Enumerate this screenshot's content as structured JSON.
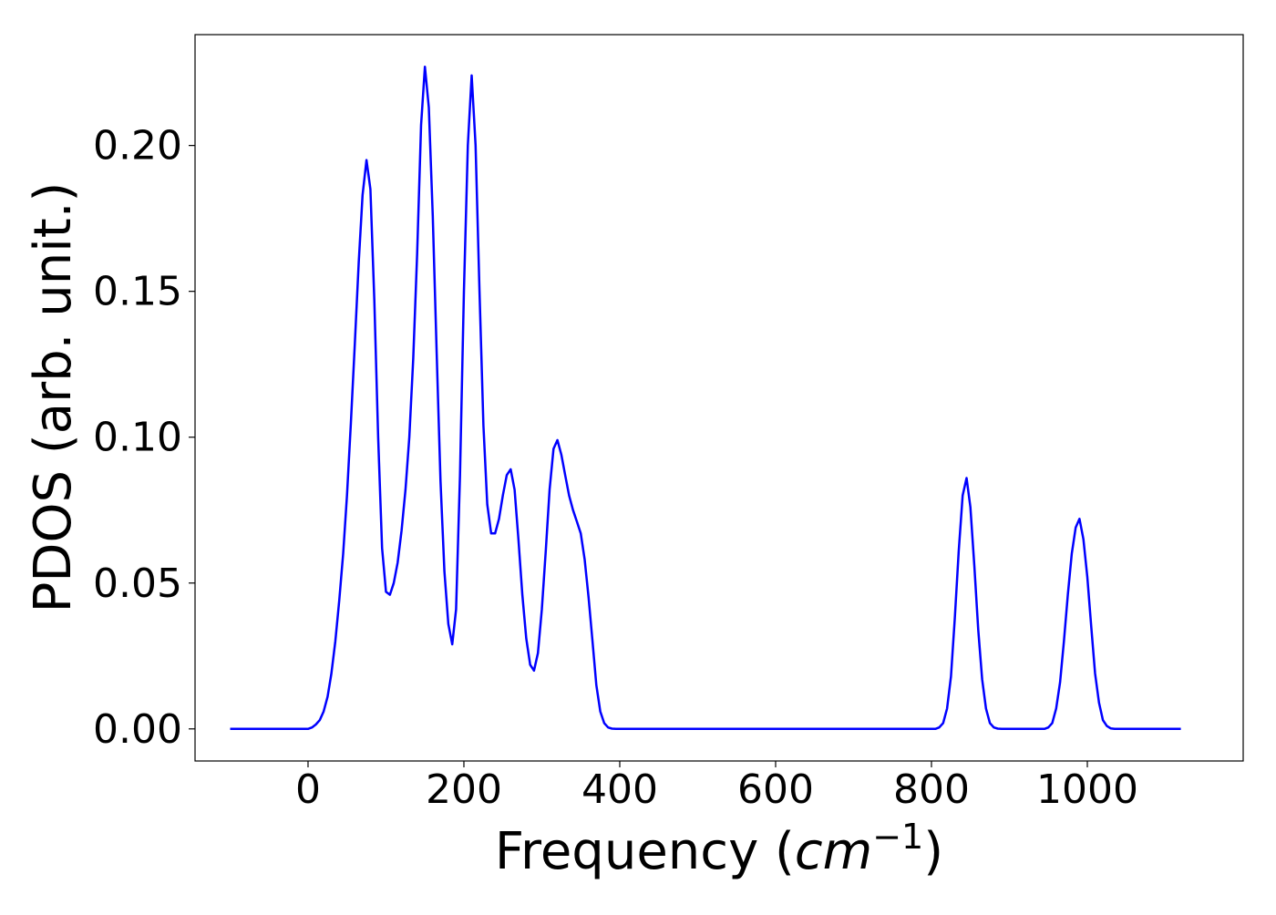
{
  "chart_data": {
    "type": "line",
    "title": "",
    "xlabel": "Frequency",
    "xlabel_unit_base": "cm",
    "xlabel_unit_exponent": "−1",
    "ylabel": "PDOS (arb. unit.)",
    "xlim": [
      -145,
      1200
    ],
    "ylim": [
      -0.011,
      0.238
    ],
    "x_ticks": [
      0,
      200,
      400,
      600,
      800,
      1000
    ],
    "x_tick_labels": [
      "0",
      "200",
      "400",
      "600",
      "800",
      "1000"
    ],
    "y_ticks": [
      0.0,
      0.05,
      0.1,
      0.15,
      0.2
    ],
    "y_tick_labels": [
      "0.00",
      "0.05",
      "0.10",
      "0.15",
      "0.20"
    ],
    "grid": false,
    "legend": "none",
    "series": [
      {
        "color": "#0000ff",
        "x": [
          -100,
          0,
          5,
          10,
          15,
          20,
          25,
          30,
          35,
          40,
          45,
          50,
          55,
          60,
          65,
          70,
          75,
          80,
          85,
          90,
          95,
          100,
          105,
          110,
          115,
          120,
          125,
          130,
          135,
          140,
          145,
          150,
          155,
          160,
          165,
          170,
          175,
          180,
          185,
          190,
          195,
          200,
          205,
          210,
          215,
          220,
          225,
          230,
          235,
          240,
          245,
          250,
          255,
          260,
          265,
          270,
          275,
          280,
          285,
          290,
          295,
          300,
          305,
          310,
          315,
          320,
          325,
          330,
          335,
          340,
          345,
          350,
          355,
          360,
          365,
          370,
          375,
          380,
          385,
          390,
          395,
          400,
          405,
          410,
          415,
          420,
          425,
          430,
          435,
          440,
          445,
          450,
          455,
          460,
          465,
          800,
          805,
          810,
          815,
          820,
          825,
          830,
          835,
          840,
          845,
          850,
          855,
          860,
          865,
          870,
          875,
          880,
          885,
          890,
          895,
          900,
          905,
          910,
          915,
          920,
          925,
          930,
          935,
          940,
          945,
          950,
          955,
          960,
          965,
          970,
          975,
          980,
          985,
          990,
          995,
          1000,
          1005,
          1010,
          1015,
          1020,
          1025,
          1030,
          1035,
          1040,
          1045,
          1050,
          1055,
          1060,
          1120
        ],
        "y": [
          0.0,
          0.0,
          0.0005,
          0.0015,
          0.003,
          0.006,
          0.011,
          0.019,
          0.03,
          0.044,
          0.06,
          0.08,
          0.105,
          0.132,
          0.16,
          0.183,
          0.195,
          0.185,
          0.147,
          0.1,
          0.062,
          0.047,
          0.046,
          0.05,
          0.057,
          0.068,
          0.082,
          0.1,
          0.127,
          0.163,
          0.207,
          0.227,
          0.213,
          0.176,
          0.129,
          0.085,
          0.054,
          0.036,
          0.029,
          0.041,
          0.087,
          0.15,
          0.2,
          0.224,
          0.2,
          0.15,
          0.104,
          0.077,
          0.067,
          0.067,
          0.072,
          0.08,
          0.087,
          0.089,
          0.082,
          0.065,
          0.046,
          0.031,
          0.022,
          0.02,
          0.026,
          0.041,
          0.061,
          0.082,
          0.096,
          0.099,
          0.094,
          0.087,
          0.08,
          0.075,
          0.071,
          0.067,
          0.058,
          0.045,
          0.03,
          0.015,
          0.006,
          0.002,
          0.0005,
          0.0001,
          0.0,
          0.0,
          0.0,
          0.0,
          0.0,
          0.0,
          0.0,
          0.0,
          0.0,
          0.0,
          0.0,
          0.0,
          0.0,
          0.0,
          0.0,
          0.0,
          0.0,
          0.0005,
          0.002,
          0.007,
          0.018,
          0.038,
          0.061,
          0.08,
          0.086,
          0.076,
          0.056,
          0.034,
          0.017,
          0.007,
          0.002,
          0.0005,
          0.0001,
          0.0,
          0.0,
          0.0,
          0.0,
          0.0,
          0.0,
          0.0,
          0.0,
          0.0,
          0.0,
          0.0,
          0.0,
          0.0005,
          0.002,
          0.007,
          0.016,
          0.03,
          0.046,
          0.06,
          0.069,
          0.072,
          0.065,
          0.052,
          0.035,
          0.019,
          0.009,
          0.003,
          0.001,
          0.0002,
          0.0,
          0.0,
          0.0,
          0.0,
          0.0,
          0.0,
          0.0
        ]
      }
    ]
  }
}
